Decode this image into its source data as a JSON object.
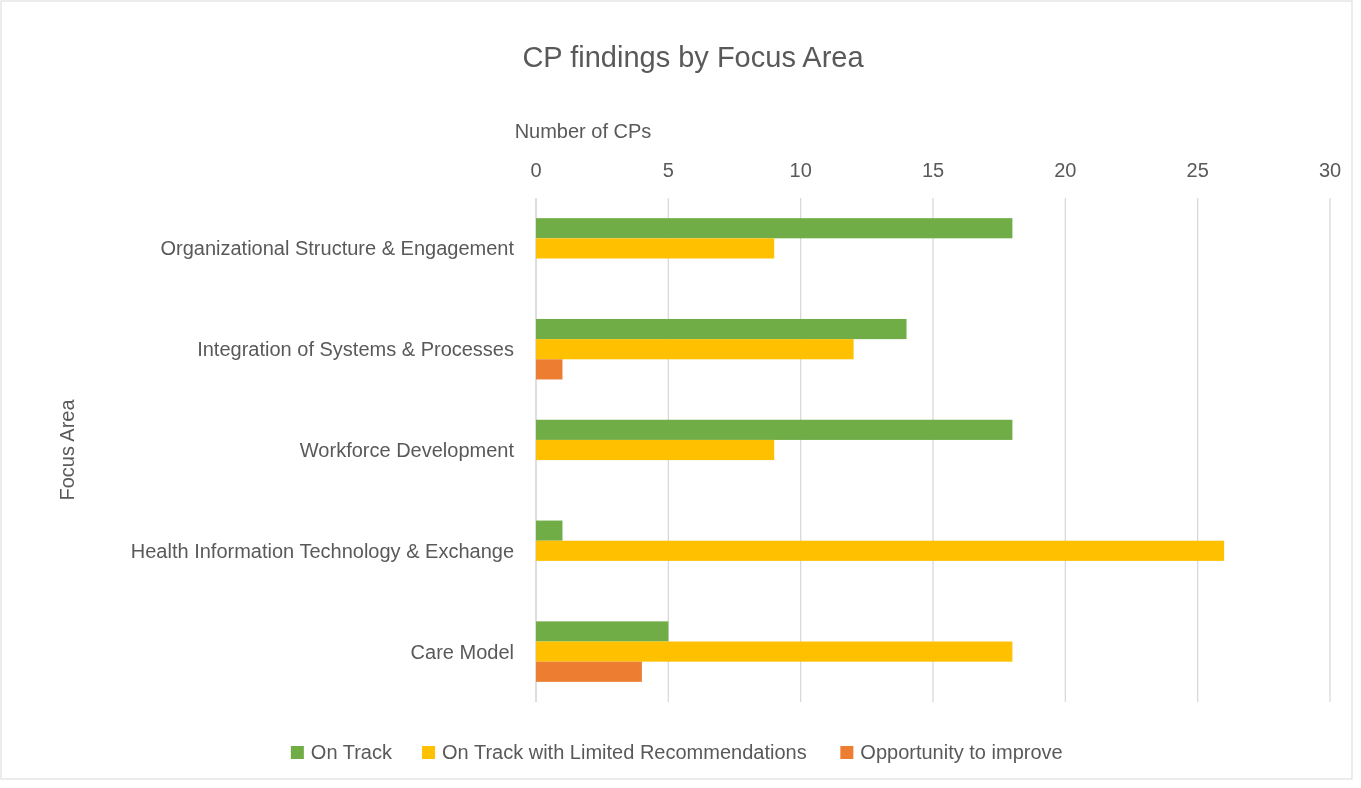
{
  "chart_data": {
    "type": "bar",
    "orientation": "horizontal",
    "title": "CP findings by Focus Area",
    "xlabel": "Number of CPs",
    "ylabel": "Focus Area",
    "categories": [
      "Organizational Structure & Engagement",
      "Integration of Systems & Processes",
      "Workforce Development",
      "Health Information Technology & Exchange",
      "Care Model"
    ],
    "series": [
      {
        "name": "On Track",
        "color": "#70ad47",
        "values": [
          18,
          14,
          18,
          1,
          5
        ]
      },
      {
        "name": "On Track with Limited Recommendations",
        "color": "#ffc000",
        "values": [
          9,
          12,
          9,
          26,
          18
        ]
      },
      {
        "name": "Opportunity to improve",
        "color": "#ed7d31",
        "values": [
          null,
          1,
          null,
          null,
          4
        ]
      }
    ],
    "xlim": [
      0,
      30
    ],
    "xticks": [
      0,
      5,
      10,
      15,
      20,
      25,
      30
    ],
    "grid": "x",
    "legend": "bottom"
  }
}
